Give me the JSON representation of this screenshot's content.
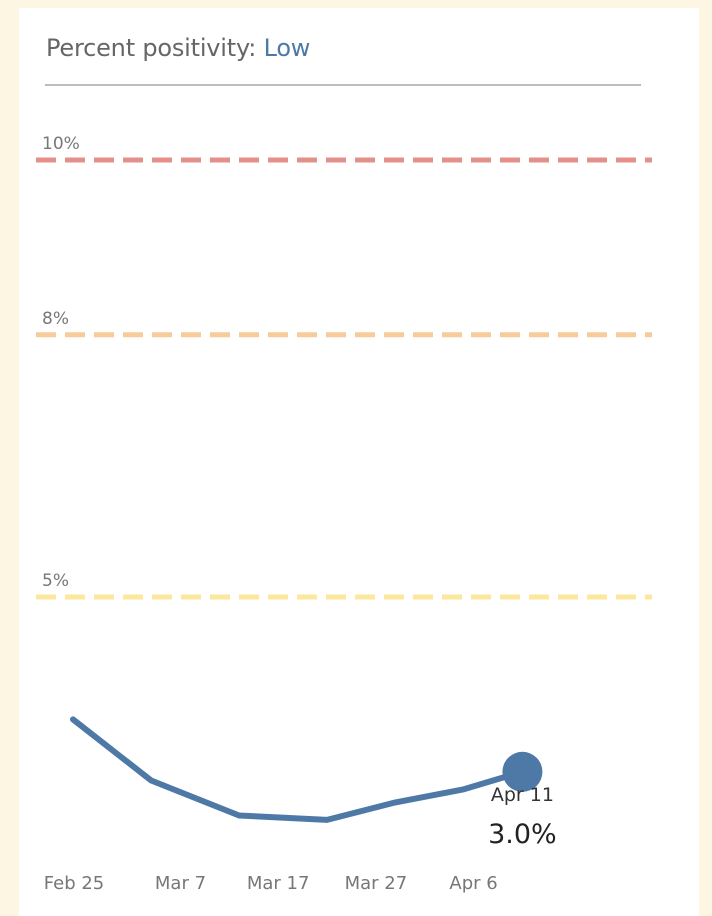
{
  "header": {
    "label": "Percent positivity:",
    "level": "Low"
  },
  "colors": {
    "line": "#4e79a7",
    "threshold_high": "#e3908a",
    "threshold_mid": "#f7cc9a",
    "threshold_low": "#fbe89c",
    "level": "#4e79a7"
  },
  "chart_data": {
    "type": "line",
    "title": "Percent positivity: Low",
    "x_ticks": [
      "Feb 25",
      "Mar 7",
      "Mar 17",
      "Mar 27",
      "Apr 6"
    ],
    "x": [
      "Feb 25",
      "Mar 4",
      "Mar 13",
      "Mar 22",
      "Mar 29",
      "Apr 5",
      "Apr 11"
    ],
    "y": [
      3.6,
      2.9,
      2.5,
      2.45,
      2.65,
      2.8,
      3.0
    ],
    "ylim": [
      0,
      11
    ],
    "thresholds": [
      {
        "label": "10%",
        "value": 10,
        "color": "#e3908a"
      },
      {
        "label": "8%",
        "value": 8,
        "color": "#f7cc9a"
      },
      {
        "label": "5%",
        "value": 5,
        "color": "#fbe89c"
      }
    ],
    "highlight": {
      "date_label": "Apr 11",
      "value_label": "3.0%"
    },
    "grid": false,
    "legend": "none"
  }
}
